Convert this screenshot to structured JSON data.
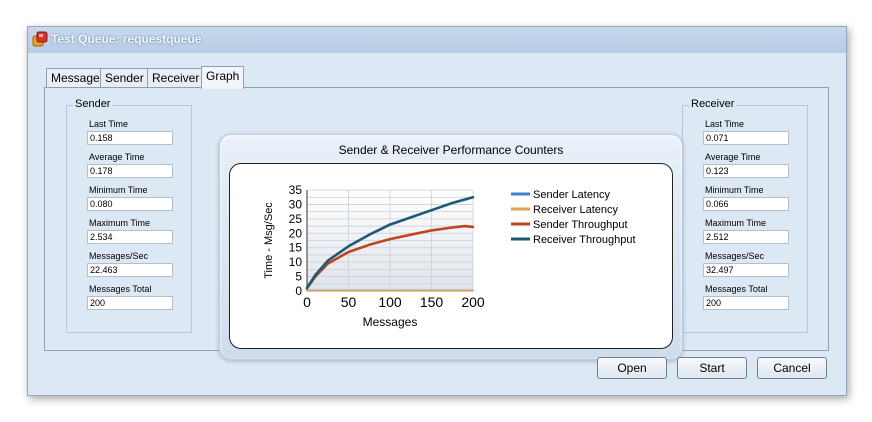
{
  "window": {
    "title": "Test Queue: requestqueue",
    "icon": "app-icon"
  },
  "tabs": [
    {
      "label": "Message"
    },
    {
      "label": "Sender"
    },
    {
      "label": "Receiver"
    },
    {
      "label": "Graph"
    }
  ],
  "sender": {
    "legend": "Sender",
    "fields": [
      {
        "label": "Last Time",
        "value": "0.158"
      },
      {
        "label": "Average Time",
        "value": "0.178"
      },
      {
        "label": "Minimum Time",
        "value": "0.080"
      },
      {
        "label": "Maximum Time",
        "value": "2.534"
      },
      {
        "label": "Messages/Sec",
        "value": "22.463"
      },
      {
        "label": "Messages Total",
        "value": "200"
      }
    ]
  },
  "receiver": {
    "legend": "Receiver",
    "fields": [
      {
        "label": "Last Time",
        "value": "0.071"
      },
      {
        "label": "Average Time",
        "value": "0.123"
      },
      {
        "label": "Minimum Time",
        "value": "0.066"
      },
      {
        "label": "Maximum Time",
        "value": "2.512"
      },
      {
        "label": "Messages/Sec",
        "value": "32.497"
      },
      {
        "label": "Messages Total",
        "value": "200"
      }
    ]
  },
  "chart_data": {
    "type": "line",
    "title": "Sender & Receiver Performance Counters",
    "xlabel": "Messages",
    "ylabel": "Time - Msg/Sec",
    "xlim": [
      0,
      200
    ],
    "ylim": [
      0,
      35
    ],
    "xticks": [
      0,
      50,
      100,
      150,
      200
    ],
    "yticks": [
      0,
      5,
      10,
      15,
      20,
      25,
      30,
      35
    ],
    "grid": true,
    "legend_position": "right",
    "series": [
      {
        "name": "Sender Latency",
        "color": "#3f7fcf",
        "x": [
          0,
          25,
          50,
          75,
          100,
          125,
          150,
          175,
          200
        ],
        "y": [
          0.2,
          0.2,
          0.2,
          0.2,
          0.2,
          0.2,
          0.2,
          0.2,
          0.2
        ]
      },
      {
        "name": "Receiver Latency",
        "color": "#e0a24a",
        "x": [
          0,
          25,
          50,
          75,
          100,
          125,
          150,
          175,
          200
        ],
        "y": [
          0.1,
          0.1,
          0.1,
          0.1,
          0.1,
          0.1,
          0.1,
          0.1,
          0.1
        ]
      },
      {
        "name": "Sender Throughput",
        "color": "#c0441c",
        "x": [
          0,
          10,
          25,
          50,
          75,
          100,
          125,
          150,
          175,
          190,
          200
        ],
        "y": [
          1,
          5,
          9.5,
          13.5,
          16,
          18,
          19.5,
          21,
          22,
          22.5,
          22.2
        ]
      },
      {
        "name": "Receiver Throughput",
        "color": "#1f5878",
        "x": [
          0,
          10,
          25,
          50,
          75,
          100,
          125,
          150,
          175,
          200
        ],
        "y": [
          1,
          5.5,
          10.5,
          15.5,
          19.5,
          23,
          25.5,
          28,
          30.5,
          32.5
        ]
      }
    ]
  },
  "buttons": {
    "open": "Open",
    "start": "Start",
    "cancel": "Cancel"
  }
}
